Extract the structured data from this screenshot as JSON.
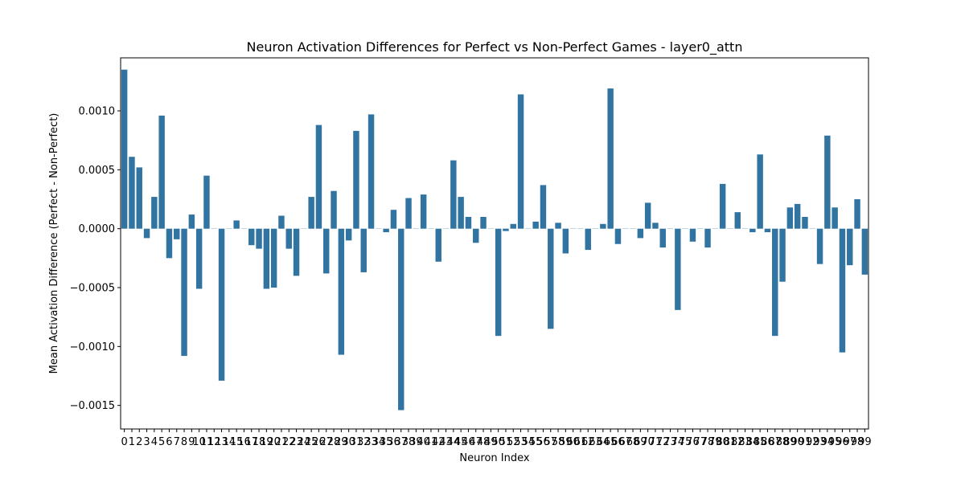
{
  "chart_data": {
    "type": "bar",
    "title": "Neuron Activation Differences for Perfect vs Non-Perfect Games - layer0_attn",
    "xlabel": "Neuron Index",
    "ylabel": "Mean Activation Difference (Perfect - Non-Perfect)",
    "ylim": [
      -0.0017,
      0.00145
    ],
    "yticks": [
      -0.0015,
      -0.001,
      -0.0005,
      0.0,
      0.0005,
      0.001
    ],
    "ytick_labels": [
      "−0.0015",
      "−0.0010",
      "−0.0005",
      "0.0000",
      "0.0005",
      "0.0010"
    ],
    "grid": false,
    "bar_color": "#3274a1",
    "categories": [
      "0",
      "1",
      "2",
      "3",
      "4",
      "5",
      "6",
      "7",
      "8",
      "9",
      "10",
      "11",
      "12",
      "13",
      "14",
      "15",
      "16",
      "17",
      "18",
      "19",
      "20",
      "21",
      "22",
      "23",
      "24",
      "25",
      "26",
      "27",
      "28",
      "29",
      "30",
      "31",
      "32",
      "33",
      "34",
      "35",
      "36",
      "37",
      "38",
      "39",
      "40",
      "41",
      "42",
      "43",
      "44",
      "45",
      "46",
      "47",
      "48",
      "49",
      "50",
      "51",
      "52",
      "53",
      "54",
      "55",
      "56",
      "57",
      "58",
      "59",
      "60",
      "61",
      "62",
      "63",
      "64",
      "65",
      "66",
      "67",
      "68",
      "69",
      "70",
      "71",
      "72",
      "73",
      "74",
      "75",
      "76",
      "77",
      "78",
      "79",
      "80",
      "81",
      "82",
      "83",
      "84",
      "85",
      "86",
      "87",
      "88",
      "89",
      "90",
      "91",
      "92",
      "93",
      "94",
      "95",
      "96",
      "97",
      "98",
      "99"
    ],
    "values": [
      0.00135,
      0.00061,
      0.00052,
      -8e-05,
      0.00027,
      0.00096,
      -0.00025,
      -9e-05,
      -0.00108,
      0.00012,
      -0.00051,
      0.00045,
      0.0,
      -0.00129,
      0.0,
      7e-05,
      0.0,
      -0.00014,
      -0.00017,
      -0.00051,
      -0.0005,
      0.00011,
      -0.00017,
      -0.0004,
      0.0,
      0.00027,
      0.00088,
      -0.00038,
      0.00032,
      -0.00107,
      -0.0001,
      0.00083,
      -0.00037,
      0.00097,
      0.0,
      -3e-05,
      0.00016,
      -0.00154,
      0.00026,
      0.0,
      0.00029,
      0.0,
      -0.00028,
      0.0,
      0.00058,
      0.00027,
      0.0001,
      -0.00012,
      0.0001,
      0.0,
      -0.00091,
      -2e-05,
      4e-05,
      0.00114,
      0.0,
      6e-05,
      0.00037,
      -0.00085,
      5e-05,
      -0.00021,
      0.0,
      0.0,
      -0.00018,
      0.0,
      4e-05,
      0.00119,
      -0.00013,
      0.0,
      0.0,
      -8e-05,
      0.00022,
      5e-05,
      -0.00016,
      0.0,
      -0.00069,
      0.0,
      -0.00011,
      0.0,
      -0.00016,
      0.0,
      0.00038,
      0.0,
      0.00014,
      0.0,
      -3e-05,
      0.00063,
      -3e-05,
      -0.00091,
      -0.00045,
      0.00018,
      0.00021,
      0.0001,
      0.0,
      -0.0003,
      0.00079,
      0.00018,
      -0.00105,
      -0.00031,
      0.00025,
      -0.00039
    ]
  }
}
